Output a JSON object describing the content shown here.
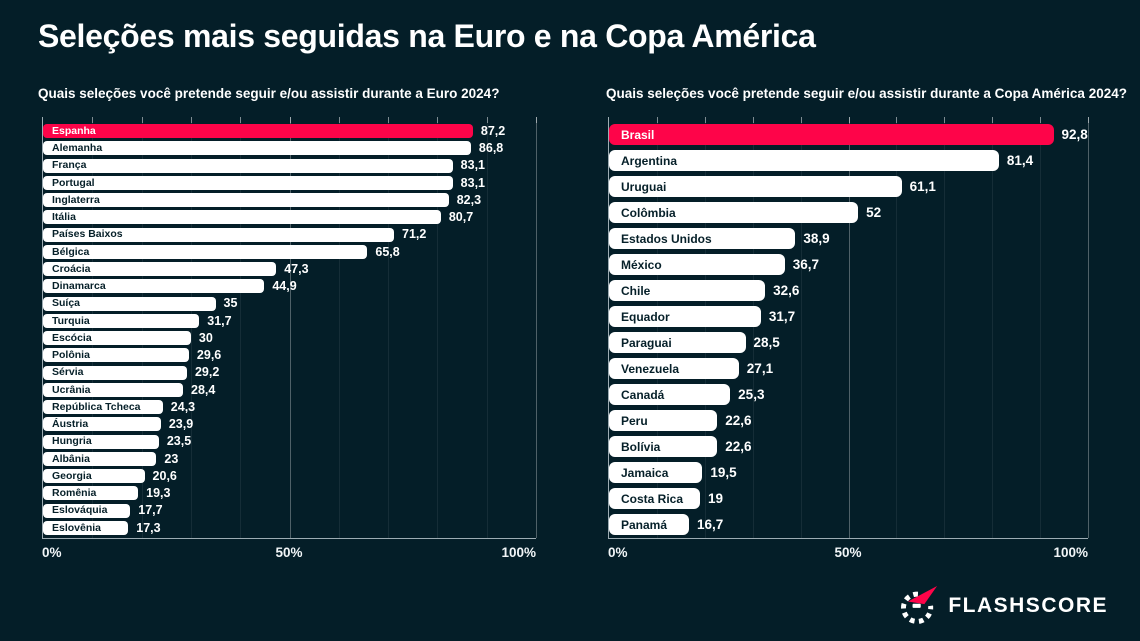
{
  "page": {
    "title": "Seleções mais seguidas na Euro e na Copa América",
    "background_color": "#041e28",
    "accent_color": "#fe0449"
  },
  "brand": {
    "name": "FLASHSCORE",
    "icon": "flashscore-dial-icon",
    "icon_colors": {
      "dial": "#ffffff",
      "flash": "#fe0449"
    }
  },
  "chart_data": [
    {
      "type": "bar",
      "orientation": "horizontal",
      "title": "Quais seleções você pretende seguir e/ou assistir durante a Euro 2024?",
      "categories": [
        "Espanha",
        "Alemanha",
        "França",
        "Portugal",
        "Inglaterra",
        "Itália",
        "Países Baixos",
        "Bélgica",
        "Croácia",
        "Dinamarca",
        "Suíça",
        "Turquia",
        "Escócia",
        "Polônia",
        "Sérvia",
        "Ucrânia",
        "República Tcheca",
        "Áustria",
        "Hungria",
        "Albânia",
        "Georgia",
        "Romênia",
        "Eslováquia",
        "Eslovênia"
      ],
      "values": [
        87.2,
        86.8,
        83.1,
        83.1,
        82.3,
        80.7,
        71.2,
        65.8,
        47.3,
        44.9,
        35,
        31.7,
        30,
        29.6,
        29.2,
        28.4,
        24.3,
        23.9,
        23.5,
        23,
        20.6,
        19.3,
        17.7,
        17.3
      ],
      "value_labels": [
        "87,2",
        "86,8",
        "83,1",
        "83,1",
        "82,3",
        "80,7",
        "71,2",
        "65,8",
        "47,3",
        "44,9",
        "35",
        "31,7",
        "30",
        "29,6",
        "29,2",
        "28,4",
        "24,3",
        "23,9",
        "23,5",
        "23",
        "20,6",
        "19,3",
        "17,7",
        "17,3"
      ],
      "highlight_index": 0,
      "bar_color": "#ffffff",
      "highlight_color": "#fe0449",
      "xlim": [
        0,
        100
      ],
      "x_ticks": [
        {
          "label": "0%",
          "pct": 0
        },
        {
          "label": "50%",
          "pct": 50
        },
        {
          "label": "100%",
          "pct": 100
        }
      ],
      "grid": true,
      "legend": false
    },
    {
      "type": "bar",
      "orientation": "horizontal",
      "title": "Quais seleções você pretende seguir e/ou assistir durante a Copa América 2024?",
      "categories": [
        "Brasil",
        "Argentina",
        "Uruguai",
        "Colômbia",
        "Estados Unidos",
        "México",
        "Chile",
        "Equador",
        "Paraguai",
        "Venezuela",
        "Canadá",
        "Peru",
        "Bolívia",
        "Jamaica",
        "Costa Rica",
        "Panamá"
      ],
      "values": [
        92.8,
        81.4,
        61.1,
        52,
        38.9,
        36.7,
        32.6,
        31.7,
        28.5,
        27.1,
        25.3,
        22.6,
        22.6,
        19.5,
        19,
        16.7
      ],
      "value_labels": [
        "92,8",
        "81,4",
        "61,1",
        "52",
        "38,9",
        "36,7",
        "32,6",
        "31,7",
        "28,5",
        "27,1",
        "25,3",
        "22,6",
        "22,6",
        "19,5",
        "19",
        "16,7"
      ],
      "highlight_index": 0,
      "bar_color": "#ffffff",
      "highlight_color": "#fe0449",
      "xlim": [
        0,
        100
      ],
      "x_ticks": [
        {
          "label": "0%",
          "pct": 0
        },
        {
          "label": "50%",
          "pct": 50
        },
        {
          "label": "100%",
          "pct": 100
        }
      ],
      "grid": true,
      "legend": false
    }
  ]
}
